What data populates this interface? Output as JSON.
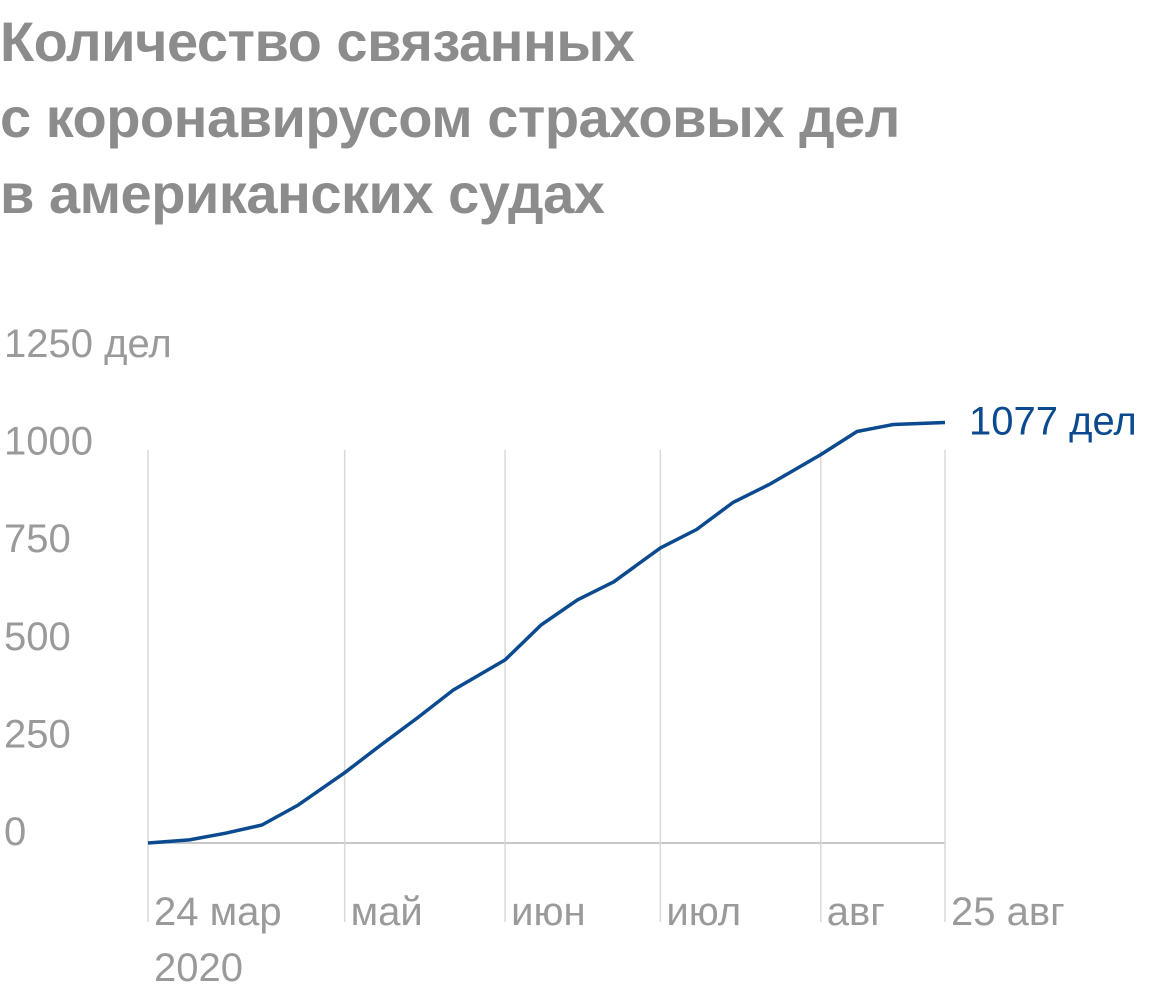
{
  "chart_data": {
    "type": "line",
    "title": "Количество связанных\nс коронавирусом страховых дел\nв американских судах",
    "x": [
      "2020-03-24",
      "2020-04-01",
      "2020-04-08",
      "2020-04-15",
      "2020-04-22",
      "2020-05-01",
      "2020-05-08",
      "2020-05-15",
      "2020-05-22",
      "2020-06-01",
      "2020-06-08",
      "2020-06-15",
      "2020-06-22",
      "2020-07-01",
      "2020-07-08",
      "2020-07-15",
      "2020-07-22",
      "2020-08-01",
      "2020-08-08",
      "2020-08-15",
      "2020-08-25"
    ],
    "series": [
      {
        "name": "дел",
        "color": "#0b4a8f",
        "values": [
          0,
          8,
          25,
          46,
          97,
          180,
          251,
          320,
          392,
          469,
          559,
          623,
          669,
          756,
          803,
          872,
          918,
          995,
          1054,
          1072,
          1077
        ],
        "value_labels": [
          null,
          null,
          null,
          null,
          null,
          null,
          null,
          null,
          null,
          null,
          null,
          null,
          null,
          null,
          null,
          null,
          null,
          null,
          null,
          null,
          "1077 дел"
        ]
      }
    ],
    "xlim": [
      "2020-03-24",
      "2020-08-25"
    ],
    "xticks": [
      {
        "value": "2020-03-24",
        "label": "24 мар 2020"
      },
      {
        "value": "2020-05-01",
        "label": "май"
      },
      {
        "value": "2020-06-01",
        "label": "июн"
      },
      {
        "value": "2020-07-01",
        "label": "июл"
      },
      {
        "value": "2020-08-01",
        "label": "авг"
      },
      {
        "value": "2020-08-25",
        "label": "25 авг"
      }
    ],
    "ylim": [
      0,
      1250
    ],
    "yticks": [
      0,
      250,
      500,
      750,
      1000,
      {
        "value": 1250,
        "label": "1250 дел"
      }
    ],
    "grid": true
  }
}
